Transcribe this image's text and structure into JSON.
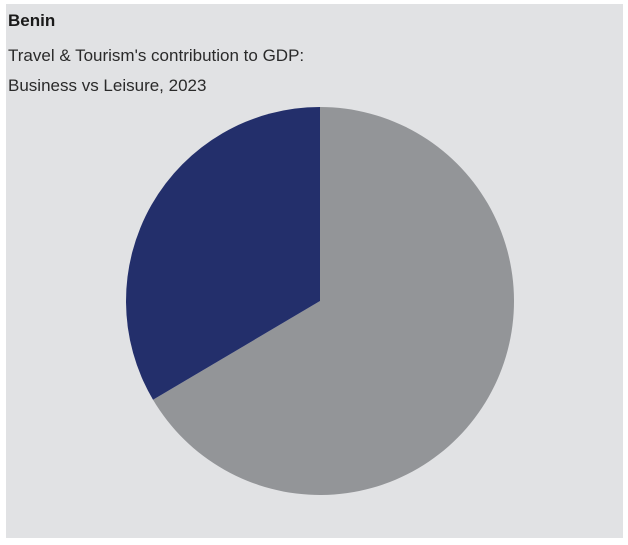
{
  "header": {
    "title": "Benin",
    "subtitle_line1": "Travel & Tourism's contribution to GDP:",
    "subtitle_line2": "Business vs Leisure, 2023"
  },
  "chart_data": {
    "type": "pie",
    "title": "Benin",
    "subtitle": "Travel & Tourism's contribution to GDP: Business vs Leisure, 2023",
    "start_angle_deg": 0,
    "direction": "clockwise",
    "slices": [
      {
        "value": 66.5,
        "color": "#939598"
      },
      {
        "value": 33.5,
        "color": "#232f6b"
      }
    ],
    "legend": "none",
    "data_labels": false
  }
}
